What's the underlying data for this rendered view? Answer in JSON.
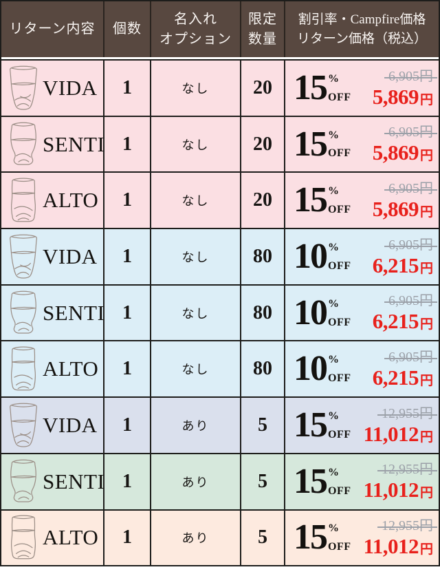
{
  "header": {
    "col_return": "リターン内容",
    "col_quantity": "個数",
    "col_option_line1": "名入れ",
    "col_option_line2": "オプション",
    "col_limit_line1": "限定",
    "col_limit_line2": "数量",
    "col_price_line1": "割引率・Campfire価格",
    "col_price_line2": "リターン価格（税込）"
  },
  "labels": {
    "percent": "%",
    "off": "OFF",
    "yen": "円"
  },
  "colors": {
    "header_bg": "#584840",
    "border": "#1d1d1b",
    "price_red": "#e8211c",
    "strike_gray": "#9ba0a8",
    "row_pink": "#fbdfe3",
    "row_blue": "#dceef7",
    "row_lavender": "#dae0ed",
    "row_green": "#d6e8dc",
    "row_peach": "#fdeadf"
  },
  "rows": [
    {
      "name": "VIDA",
      "icon": "vida-glass-icon",
      "quantity": "1",
      "naming_option": "なし",
      "limited_qty": "20",
      "discount": "15",
      "price_original": "6,905円",
      "price_discounted": "5,869",
      "bg": "#fbdfe3"
    },
    {
      "name": "SENTI",
      "icon": "senti-glass-icon",
      "quantity": "1",
      "naming_option": "なし",
      "limited_qty": "20",
      "discount": "15",
      "price_original": "6,905円",
      "price_discounted": "5,869",
      "bg": "#fbdfe3"
    },
    {
      "name": "ALTO",
      "icon": "alto-glass-icon",
      "quantity": "1",
      "naming_option": "なし",
      "limited_qty": "20",
      "discount": "15",
      "price_original": "6,905円",
      "price_discounted": "5,869",
      "bg": "#fbdfe3"
    },
    {
      "name": "VIDA",
      "icon": "vida-glass-icon",
      "quantity": "1",
      "naming_option": "なし",
      "limited_qty": "80",
      "discount": "10",
      "price_original": "6,905円",
      "price_discounted": "6,215",
      "bg": "#dceef7"
    },
    {
      "name": "SENTI",
      "icon": "senti-glass-icon",
      "quantity": "1",
      "naming_option": "なし",
      "limited_qty": "80",
      "discount": "10",
      "price_original": "6,905円",
      "price_discounted": "6,215",
      "bg": "#dceef7"
    },
    {
      "name": "ALTO",
      "icon": "alto-glass-icon",
      "quantity": "1",
      "naming_option": "なし",
      "limited_qty": "80",
      "discount": "10",
      "price_original": "6,905円",
      "price_discounted": "6,215",
      "bg": "#dceef7"
    },
    {
      "name": "VIDA",
      "icon": "vida-glass-icon",
      "quantity": "1",
      "naming_option": "あり",
      "limited_qty": "5",
      "discount": "15",
      "price_original": "12,955円",
      "price_discounted": "11,012",
      "bg": "#dae0ed"
    },
    {
      "name": "SENTI",
      "icon": "senti-glass-icon",
      "quantity": "1",
      "naming_option": "あり",
      "limited_qty": "5",
      "discount": "15",
      "price_original": "12,955円",
      "price_discounted": "11,012",
      "bg": "#d6e8dc"
    },
    {
      "name": "ALTO",
      "icon": "alto-glass-icon",
      "quantity": "1",
      "naming_option": "あり",
      "limited_qty": "5",
      "discount": "15",
      "price_original": "12,955円",
      "price_discounted": "11,012",
      "bg": "#fdeadf"
    }
  ]
}
